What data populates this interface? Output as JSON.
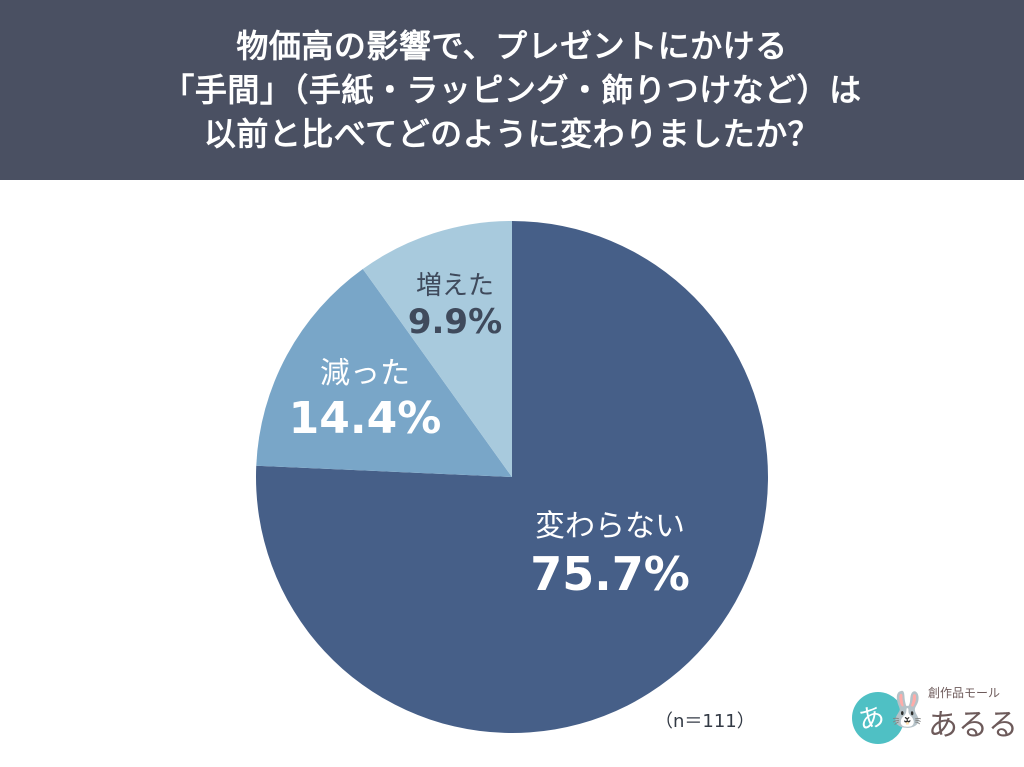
{
  "header": {
    "title_lines": [
      "物価高の影響で、プレゼントにかける",
      "「手間」（手紙・ラッピング・飾りつけなど）は",
      "以前と比べてどのように変わりましたか？"
    ]
  },
  "chart_data": {
    "type": "pie",
    "title": "物価高の影響で、プレゼントにかける「手間」（手紙・ラッピング・飾りつけなど）は以前と比べてどのように変わりましたか？",
    "categories": [
      "変わらない",
      "減った",
      "増えた"
    ],
    "values": [
      75.7,
      14.4,
      9.9
    ],
    "unit": "%",
    "colors": [
      "#465f88",
      "#79a6c8",
      "#a8cadd"
    ],
    "start_angle_deg": 0,
    "direction": "clockwise",
    "sample_size": "n=111",
    "legend": "none",
    "labels": [
      {
        "category": "変わらない",
        "value_text": "75.7%"
      },
      {
        "category": "減った",
        "value_text": "14.4%"
      },
      {
        "category": "増えた",
        "value_text": "9.9%"
      }
    ]
  },
  "footer": {
    "n_label": "（n＝111）"
  },
  "logo": {
    "circle_char": "あ",
    "rabbit_glyph": "🐰",
    "subtitle": "創作品モール",
    "name": "あるる"
  }
}
